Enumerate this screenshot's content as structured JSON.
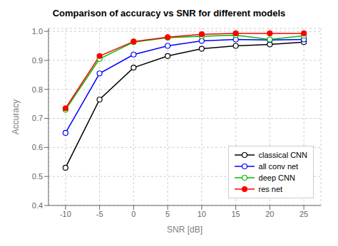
{
  "chart_data": {
    "type": "line",
    "title": "Comparison of accuracy vs SNR for different models",
    "xlabel": "SNR [dB]",
    "ylabel": "Accuracy",
    "x": [
      -10,
      -5,
      0,
      5,
      10,
      15,
      20,
      25
    ],
    "series": [
      {
        "name": "classical CNN",
        "color": "#000000",
        "marker": "circle",
        "values": [
          0.53,
          0.765,
          0.875,
          0.915,
          0.94,
          0.95,
          0.955,
          0.963
        ]
      },
      {
        "name": "all conv net",
        "color": "#0000ff",
        "marker": "circle",
        "values": [
          0.65,
          0.855,
          0.92,
          0.95,
          0.967,
          0.972,
          0.97,
          0.972
        ]
      },
      {
        "name": "deep CNN",
        "color": "#00bb00",
        "marker": "circle",
        "values": [
          0.73,
          0.905,
          0.963,
          0.978,
          0.983,
          0.987,
          0.972,
          0.985
        ]
      },
      {
        "name": "res net",
        "color": "#ff0000",
        "marker": "dot",
        "values": [
          0.735,
          0.915,
          0.965,
          0.98,
          0.99,
          0.993,
          0.993,
          0.993
        ]
      }
    ],
    "xlim": [
      -12.5,
      27.5
    ],
    "xticks": [
      -10,
      -5,
      0,
      5,
      10,
      15,
      20,
      25
    ],
    "ylim": [
      0.4,
      1.01
    ],
    "yticks": [
      0.4,
      0.5,
      0.6,
      0.7,
      0.8,
      0.9,
      {
        "value": 1.0,
        "label": "1.0"
      }
    ],
    "grid": true,
    "legend": "lower right"
  }
}
